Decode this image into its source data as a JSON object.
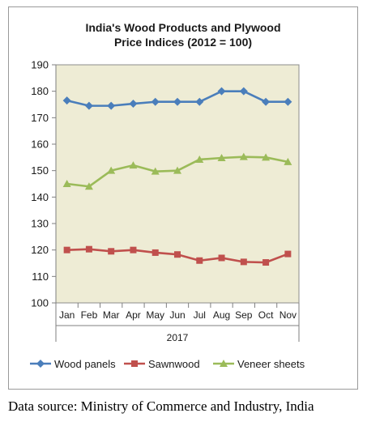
{
  "chart_data": {
    "type": "line",
    "title_line1": "India's Wood Products and Plywood",
    "title_line2": "Price Indices (2012 = 100)",
    "x_group_label": "2017",
    "categories": [
      "Jan",
      "Feb",
      "Mar",
      "Apr",
      "May",
      "Jun",
      "Jul",
      "Aug",
      "Sep",
      "Oct",
      "Nov"
    ],
    "ylim": [
      100,
      190
    ],
    "yticks": [
      100,
      110,
      120,
      130,
      140,
      150,
      160,
      170,
      180,
      190
    ],
    "grid": false,
    "legend_position": "bottom",
    "series": [
      {
        "name": "Wood panels",
        "color": "#4a7ebb",
        "marker": "diamond",
        "values": [
          176.5,
          174.5,
          174.5,
          175.3,
          176,
          176,
          176,
          180,
          180,
          176,
          176
        ]
      },
      {
        "name": "Sawnwood",
        "color": "#c0504d",
        "marker": "square",
        "values": [
          120,
          120.3,
          119.5,
          120,
          119,
          118.3,
          116,
          117,
          115.5,
          115.3,
          118.5
        ]
      },
      {
        "name": "Veneer sheets",
        "color": "#9bbb59",
        "marker": "triangle",
        "values": [
          145,
          144,
          150,
          152,
          149.7,
          150,
          154.2,
          154.8,
          155.2,
          155,
          153.3
        ]
      }
    ],
    "plot_background": "#eeecd5"
  },
  "source_text": "Data source: Ministry of Commerce and Industry, India"
}
